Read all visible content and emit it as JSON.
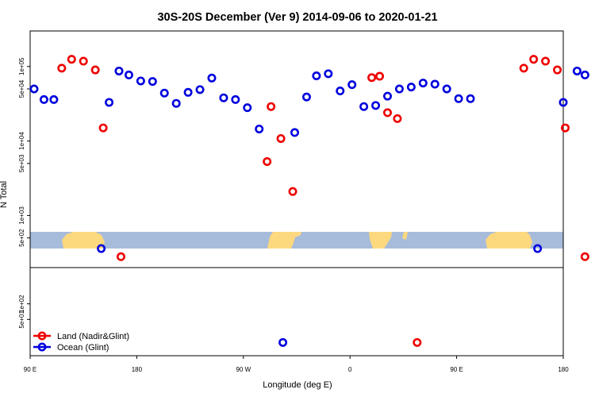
{
  "chart_data": {
    "type": "scatter",
    "title": "30S-20S December (Ver 9)   2014-09-06 to 2020-01-21",
    "xlabel": "Longitude (deg E)",
    "ylabel": "N Total",
    "log_scale_y": true,
    "xlim": [
      -90,
      180
    ],
    "upper_panel_ylim": [
      200,
      300000
    ],
    "lower_panel_ylim": [
      10,
      500
    ],
    "x_tick_labels": [
      {
        "x": -90,
        "label": "90 E"
      },
      {
        "x": -36,
        "label": "180"
      },
      {
        "x": 18,
        "label": "90 W"
      },
      {
        "x": 72,
        "label": "0"
      },
      {
        "x": 126,
        "label": "90 E"
      },
      {
        "x": 180,
        "label": "180"
      }
    ],
    "upper_y_tick_labels": [
      {
        "y": 500,
        "label": "5e+02"
      },
      {
        "y": 1000,
        "label": "1e+03"
      },
      {
        "y": 5000,
        "label": "5e+03"
      },
      {
        "y": 10000,
        "label": "1e+04"
      },
      {
        "y": 50000,
        "label": "5e+04"
      },
      {
        "y": 100000,
        "label": "1e+05"
      }
    ],
    "lower_y_tick_labels": [
      {
        "y": 50,
        "label": "5e+01"
      },
      {
        "y": 100,
        "label": "1e+02"
      }
    ],
    "legend": {
      "position": "bottom-left",
      "entries": [
        {
          "label": "Land (Nadir&Glint)",
          "color": "#ee0000"
        },
        {
          "label": "Ocean (Glint)",
          "color": "#0000dd"
        }
      ]
    },
    "colors": {
      "land": "#ee0000",
      "ocean": "#0000dd",
      "map_ocean": "#a7bbdb",
      "map_land": "#fcd87f"
    },
    "series": [
      {
        "name": "Land (Nadir&Glint)",
        "upper": [
          {
            "x": -74,
            "y": 95000
          },
          {
            "x": -69,
            "y": 125000
          },
          {
            "x": -63,
            "y": 118000
          },
          {
            "x": -57,
            "y": 90000
          },
          {
            "x": -53,
            "y": 15000
          },
          {
            "x": 30,
            "y": 5300
          },
          {
            "x": 32,
            "y": 29000
          },
          {
            "x": 37,
            "y": 10800
          },
          {
            "x": 43,
            "y": 2100
          },
          {
            "x": 83,
            "y": 71000
          },
          {
            "x": 87,
            "y": 74000
          },
          {
            "x": 91,
            "y": 24000
          },
          {
            "x": 96,
            "y": 20000
          },
          {
            "x": 160,
            "y": 95000
          },
          {
            "x": 165,
            "y": 125000
          },
          {
            "x": 171,
            "y": 118000
          },
          {
            "x": 177,
            "y": 90000
          },
          {
            "x": 181,
            "y": 15000
          },
          {
            "x": -44,
            "y": 280
          },
          {
            "x": 191,
            "y": 280
          }
        ],
        "lower": [
          {
            "x": 106,
            "y": 18
          }
        ]
      },
      {
        "name": "Ocean (Glint)",
        "upper": [
          {
            "x": -88,
            "y": 50000
          },
          {
            "x": -83,
            "y": 36000
          },
          {
            "x": -78,
            "y": 36000
          },
          {
            "x": -54,
            "y": 360
          },
          {
            "x": -50,
            "y": 33000
          },
          {
            "x": -45,
            "y": 87000
          },
          {
            "x": -40,
            "y": 77000
          },
          {
            "x": -34,
            "y": 64000
          },
          {
            "x": -28,
            "y": 63000
          },
          {
            "x": -22,
            "y": 44000
          },
          {
            "x": -16,
            "y": 32000
          },
          {
            "x": -10,
            "y": 45000
          },
          {
            "x": -4,
            "y": 49000
          },
          {
            "x": 2,
            "y": 70000
          },
          {
            "x": 8,
            "y": 38000
          },
          {
            "x": 14,
            "y": 36000
          },
          {
            "x": 20,
            "y": 28000
          },
          {
            "x": 26,
            "y": 14500
          },
          {
            "x": 44,
            "y": 13000
          },
          {
            "x": 50,
            "y": 39000
          },
          {
            "x": 55,
            "y": 75000
          },
          {
            "x": 61,
            "y": 80000
          },
          {
            "x": 67,
            "y": 47000
          },
          {
            "x": 73,
            "y": 57000
          },
          {
            "x": 79,
            "y": 29000
          },
          {
            "x": 85,
            "y": 30000
          },
          {
            "x": 91,
            "y": 40000
          },
          {
            "x": 97,
            "y": 50000
          },
          {
            "x": 103,
            "y": 53000
          },
          {
            "x": 109,
            "y": 60000
          },
          {
            "x": 115,
            "y": 58000
          },
          {
            "x": 121,
            "y": 50000
          },
          {
            "x": 127,
            "y": 37000
          },
          {
            "x": 133,
            "y": 37000
          },
          {
            "x": 167,
            "y": 360
          },
          {
            "x": 180,
            "y": 33000
          },
          {
            "x": 187,
            "y": 87000
          },
          {
            "x": 191,
            "y": 77000
          }
        ],
        "lower": [
          {
            "x": 38,
            "y": 18
          }
        ]
      }
    ]
  }
}
